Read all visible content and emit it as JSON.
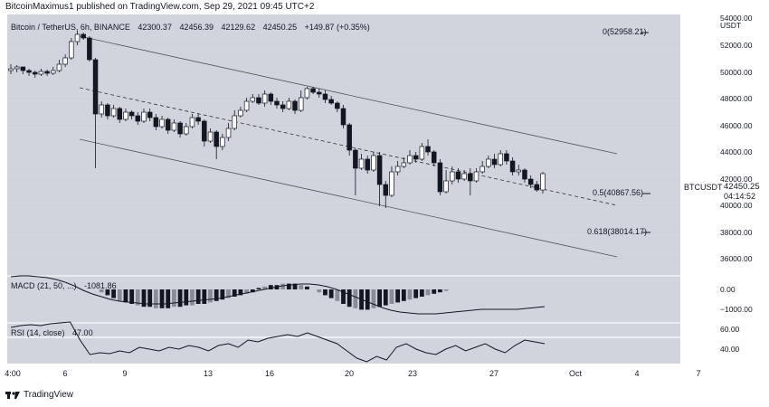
{
  "header": {
    "published_text": "BitcoinMaximus1 published on TradingView.com, Sep 29, 2021 09:45 UTC+2"
  },
  "legend": {
    "symbol": "Bitcoin / TetherUS, 6h, BINANCE",
    "open": "42300.37",
    "high": "42456.39",
    "low": "42129.62",
    "close": "42450.25",
    "change": "+149.87 (+0.35%)"
  },
  "price_axis": {
    "top_partial": "54000.00",
    "currency": "USDT",
    "labels": [
      "52000.00",
      "50000.00",
      "48000.00",
      "46000.00",
      "44000.00",
      "42000.00",
      "40000.00",
      "38000.00",
      "36000.00"
    ],
    "ticker": "BTCUSDT",
    "last_price": "42450.25",
    "countdown": "04:14:52"
  },
  "fib_levels": [
    {
      "label": "0(52958.21)",
      "price": 52958.21
    },
    {
      "label": "0.5(40867.56)",
      "price": 40867.56
    },
    {
      "label": "0.618(38014.17)",
      "price": 38014.17
    }
  ],
  "macd": {
    "label": "MACD (21, 50, ...)",
    "value": "-1081.86",
    "axis_labels": [
      "0.00",
      "−1000.00"
    ]
  },
  "rsi": {
    "label": "RSI (14, close)",
    "value": "47.00",
    "axis_labels": [
      "60.00",
      "40.00"
    ]
  },
  "time_axis": {
    "labels": [
      "4:00",
      "6",
      "9",
      "13",
      "16",
      "20",
      "23",
      "27",
      "Oct",
      "4",
      "7"
    ]
  },
  "footer": {
    "brand": "TradingView"
  },
  "colors": {
    "panel": "#d1d4dc",
    "candle_up": "#ffffff",
    "candle_down": "#131722",
    "line": "#131722"
  }
}
